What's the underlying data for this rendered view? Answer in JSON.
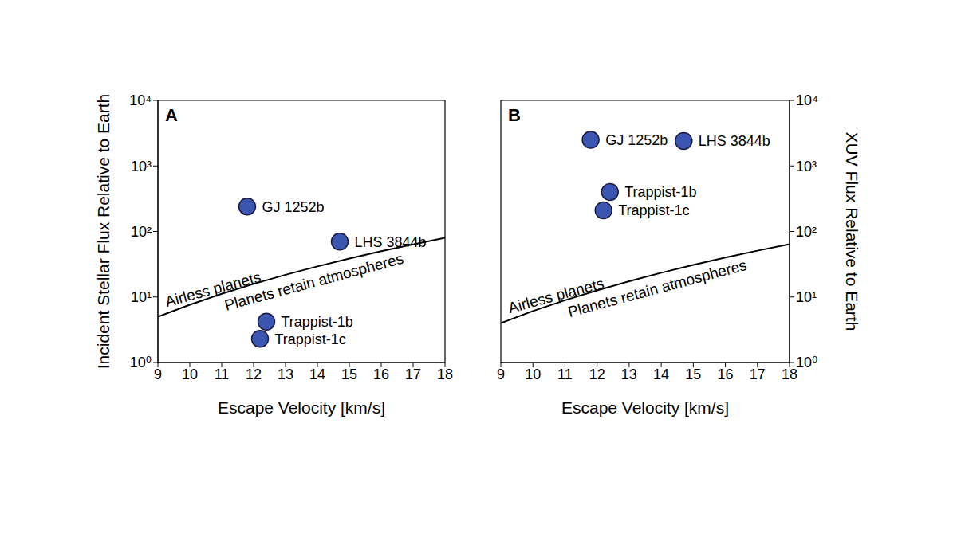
{
  "chart_data": [
    {
      "type": "scatter",
      "panel": "A",
      "x_label": "Escape Velocity [km/s]",
      "y_label": "Incident Stellar Flux Relative to Earth",
      "log": "y",
      "xlim": [
        9,
        18
      ],
      "xticks": [
        9,
        10,
        11,
        12,
        13,
        14,
        15,
        16,
        17,
        18
      ],
      "ylim": [
        1,
        10000
      ],
      "yticks": [
        {
          "value": 1,
          "label": "10⁰"
        },
        {
          "value": 10,
          "label": "10¹"
        },
        {
          "value": 100,
          "label": "10²"
        },
        {
          "value": 1000,
          "label": "10³"
        },
        {
          "value": 10000,
          "label": "10⁴"
        }
      ],
      "series": [
        {
          "type": "scatter",
          "marker": "circle",
          "color": "#3a56b0",
          "x": [
            11.8,
            14.7,
            12.4,
            12.2
          ],
          "values": [
            240,
            70,
            4.2,
            2.3
          ],
          "point_labels": [
            "GJ 1252b",
            "LHS 3844b",
            "Trappist-1b",
            "Trappist-1c"
          ]
        },
        {
          "type": "line",
          "line_style": "solid",
          "color": "#000000",
          "x": [
            9,
            10,
            11,
            12,
            13,
            14,
            15,
            16,
            17,
            18
          ],
          "values": [
            5,
            7.6,
            11.2,
            15.8,
            21.8,
            29.3,
            38.6,
            49.9,
            63.6,
            80
          ]
        }
      ],
      "annotations": [
        "Airless planets",
        "Planets retain atmospheres"
      ]
    },
    {
      "type": "scatter",
      "panel": "B",
      "x_label": "Escape Velocity [km/s]",
      "y_label": "XUV Flux Relative to Earth",
      "log": "y",
      "xlim": [
        9,
        18
      ],
      "xticks": [
        9,
        10,
        11,
        12,
        13,
        14,
        15,
        16,
        17,
        18
      ],
      "ylim": [
        1,
        10000
      ],
      "yticks": [
        {
          "value": 1,
          "label": "10⁰"
        },
        {
          "value": 10,
          "label": "10¹"
        },
        {
          "value": 100,
          "label": "10²"
        },
        {
          "value": 1000,
          "label": "10³"
        },
        {
          "value": 10000,
          "label": "10⁴"
        }
      ],
      "series": [
        {
          "type": "scatter",
          "marker": "circle",
          "color": "#3a56b0",
          "x": [
            11.8,
            14.7,
            12.4,
            12.2
          ],
          "values": [
            2500,
            2400,
            400,
            210
          ],
          "point_labels": [
            "GJ 1252b",
            "LHS 3844b",
            "Trappist-1b",
            "Trappist-1c"
          ]
        },
        {
          "type": "line",
          "line_style": "solid",
          "color": "#000000",
          "x": [
            9,
            10,
            11,
            12,
            13,
            14,
            15,
            16,
            17,
            18
          ],
          "values": [
            4,
            6.1,
            8.9,
            12.6,
            17.4,
            23.4,
            30.9,
            39.9,
            50.9,
            64
          ]
        }
      ],
      "annotations": [
        "Airless planets",
        "Planets retain atmospheres"
      ]
    }
  ]
}
